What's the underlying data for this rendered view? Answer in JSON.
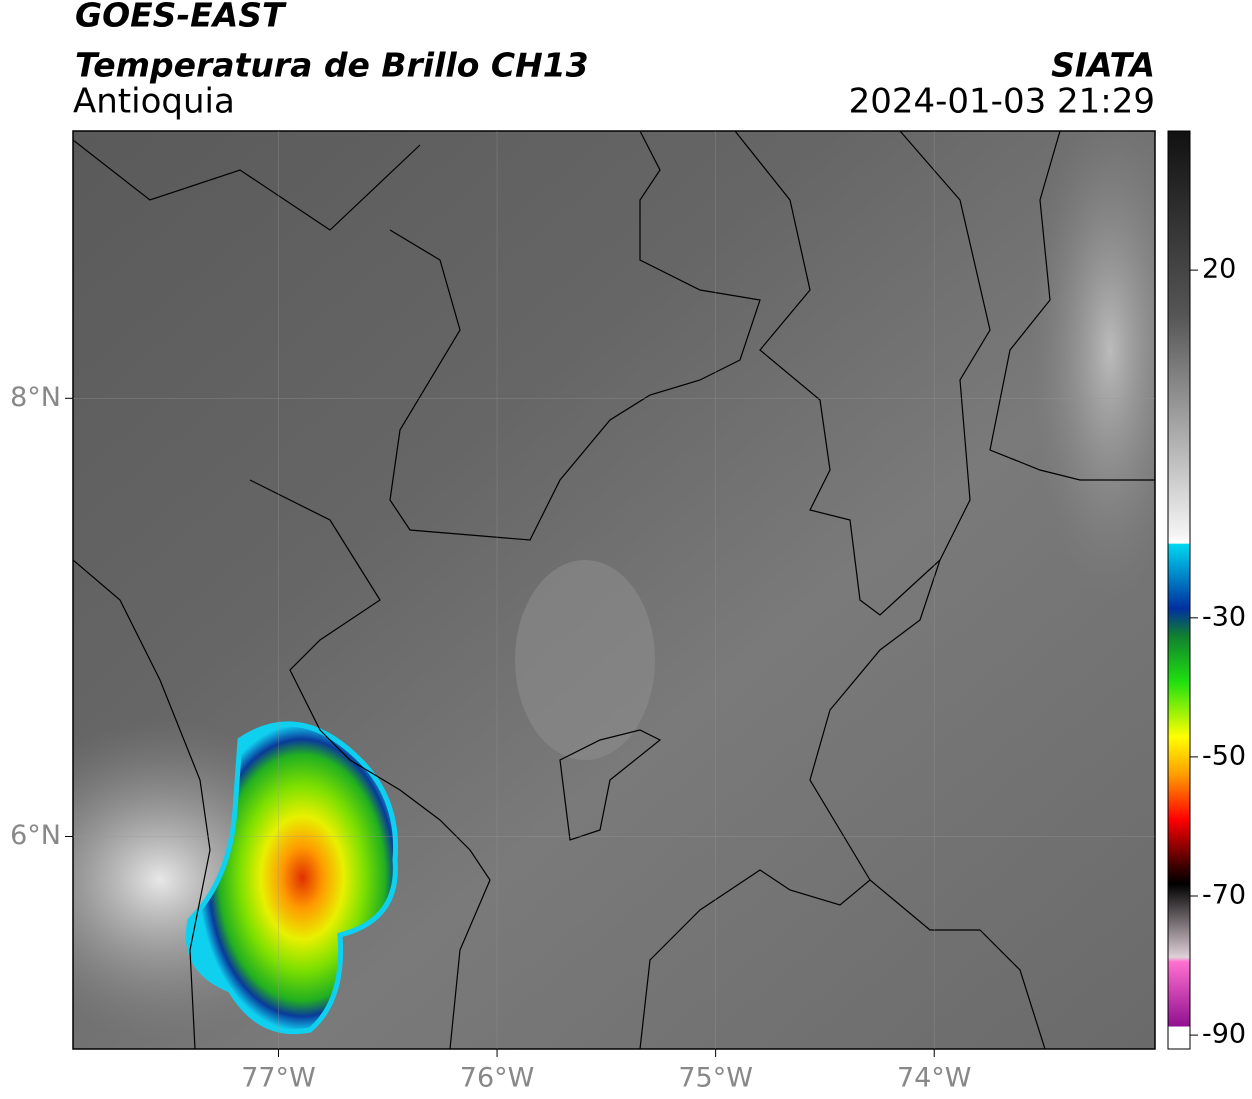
{
  "header": {
    "title": "GOES-EAST",
    "subtitle": "Temperatura de Brillo CH13",
    "region": "Antioquia",
    "source": "SIATA",
    "datetime": "2024-01-03 21:29"
  },
  "map": {
    "xlim": [
      -77.94,
      -72.99
    ],
    "ylim": [
      5.03,
      9.22
    ],
    "xticks": [
      {
        "value": -77,
        "label": "77°W"
      },
      {
        "value": -76,
        "label": "76°W"
      },
      {
        "value": -75,
        "label": "75°W"
      },
      {
        "value": -74,
        "label": "74°W"
      }
    ],
    "yticks": [
      {
        "value": 8,
        "label": "8°N"
      },
      {
        "value": 6,
        "label": "6°N"
      }
    ]
  },
  "colorbar": {
    "vlim": [
      -92,
      40
    ],
    "ticks": [
      20,
      -30,
      -50,
      -70,
      -90
    ]
  }
}
